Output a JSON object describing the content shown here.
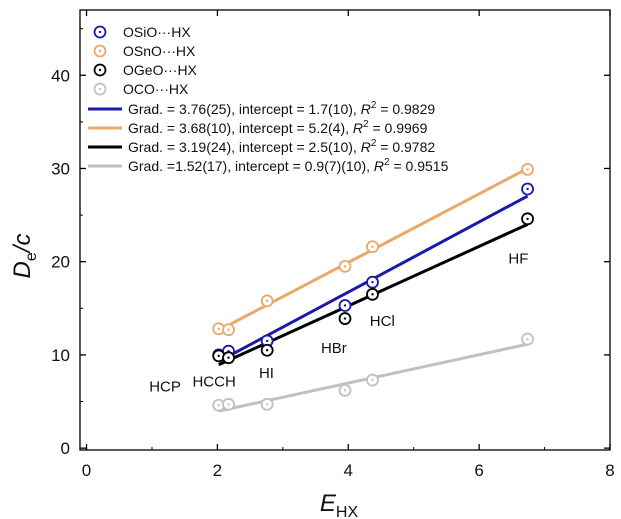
{
  "chart_data": {
    "type": "scatter",
    "xlabel_main": "E",
    "xlabel_sub": "HX",
    "ylabel_main": "D",
    "ylabel_sub": "e",
    "ylabel_suffix": "/c",
    "xlim": [
      -0.1,
      8
    ],
    "ylim": [
      -0.2,
      47
    ],
    "xticks": [
      0,
      2,
      4,
      6,
      8
    ],
    "yticks": [
      0,
      10,
      20,
      30,
      40
    ],
    "grid": false,
    "legend_position": "top-left",
    "series": [
      {
        "name": "OSiO···HX",
        "color": "#1a1aaa",
        "x": [
          2.02,
          2.17,
          2.76,
          3.95,
          4.37,
          6.74
        ],
        "y": [
          10.0,
          10.4,
          11.5,
          15.3,
          17.8,
          27.8
        ],
        "fit": {
          "label": "Grad. = 3.76(25), intercept = 1.7(10), ",
          "r2": "0.9829",
          "slope": 3.76,
          "intercept": 1.7
        }
      },
      {
        "name": "OSnO···HX",
        "color": "#e8a96a",
        "x": [
          2.02,
          2.17,
          2.76,
          3.95,
          4.37,
          6.74
        ],
        "y": [
          12.8,
          12.7,
          15.8,
          19.5,
          21.6,
          29.9
        ],
        "fit": {
          "label": "Grad. = 3.68(10), intercept = 5.2(4), ",
          "r2": "0.9969",
          "slope": 3.68,
          "intercept": 5.2
        }
      },
      {
        "name": "OGeO···HX",
        "color": "#000000",
        "x": [
          2.02,
          2.17,
          2.76,
          3.95,
          4.37,
          6.74
        ],
        "y": [
          9.9,
          9.7,
          10.5,
          13.9,
          16.5,
          24.6
        ],
        "fit": {
          "label": "Grad. = 3.19(24), intercept = 2.5(10), ",
          "r2": "0.9782",
          "slope": 3.19,
          "intercept": 2.5
        }
      },
      {
        "name": "OCO···HX",
        "color": "#c0c0c0",
        "x": [
          2.02,
          2.17,
          2.76,
          3.95,
          4.37,
          6.74
        ],
        "y": [
          4.6,
          4.7,
          4.7,
          6.2,
          7.3,
          11.7
        ],
        "fit": {
          "label": "Grad. =1.52(17), intercept = 0.9(7)(10), ",
          "r2": "0.9515",
          "slope": 1.52,
          "intercept": 0.9
        }
      }
    ],
    "r2_symbol": "R",
    "r2_exp": "2",
    "r2_eq": " = ",
    "annotations": [
      {
        "text": "HCP",
        "x": 1.2,
        "y": 6.1
      },
      {
        "text": "HCCH",
        "x": 1.95,
        "y": 6.6
      },
      {
        "text": "HI",
        "x": 2.75,
        "y": 7.5
      },
      {
        "text": "HBr",
        "x": 3.78,
        "y": 10.2
      },
      {
        "text": "HCl",
        "x": 4.52,
        "y": 13.1
      },
      {
        "text": "HF",
        "x": 6.6,
        "y": 19.8
      }
    ]
  }
}
